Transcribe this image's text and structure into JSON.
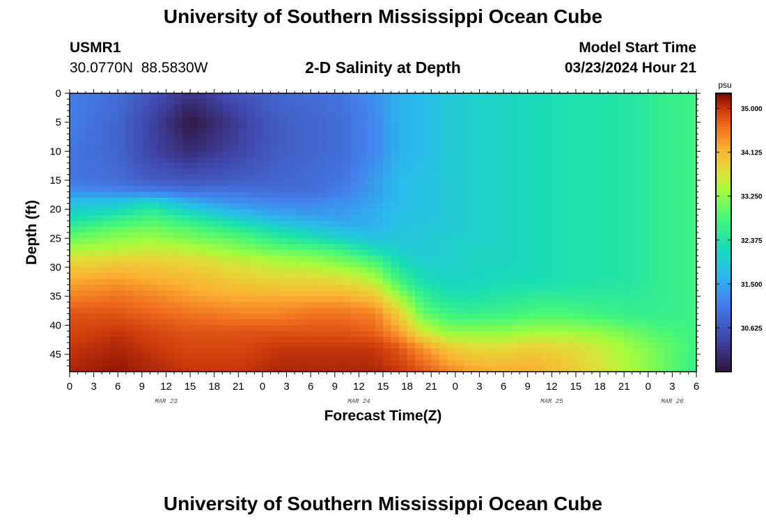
{
  "page": {
    "title": "University of Southern Mississippi Ocean Cube",
    "footer_title": "University of Southern Mississippi Ocean Cube",
    "station_id": "USMR1",
    "station_coords": "30.0770N  88.5830W",
    "plot_title": "2-D Salinity at Depth",
    "model_start_label": "Model Start Time",
    "model_start_value": "03/23/2024 Hour 21"
  },
  "chart_data": {
    "type": "heatmap",
    "title": "2-D Salinity at Depth",
    "xlabel": "Forecast Time(Z)",
    "ylabel": "Depth (ft)",
    "x_unit": "hours since 2024-03-23 00Z",
    "xlim": [
      0,
      78
    ],
    "ylim": [
      0,
      48
    ],
    "y_reversed": true,
    "x_ticks": [
      0,
      3,
      6,
      9,
      12,
      15,
      18,
      21,
      24,
      27,
      30,
      33,
      36,
      39,
      42,
      45,
      48,
      51,
      54,
      57,
      60,
      63,
      66,
      69,
      72,
      75,
      78
    ],
    "x_tick_labels": [
      "0",
      "3",
      "6",
      "9",
      "12",
      "15",
      "18",
      "21",
      "0",
      "3",
      "6",
      "9",
      "12",
      "15",
      "18",
      "21",
      "0",
      "3",
      "6",
      "9",
      "12",
      "15",
      "18",
      "21",
      "0",
      "3",
      "6"
    ],
    "y_ticks": [
      0,
      5,
      10,
      15,
      20,
      25,
      30,
      35,
      40,
      45
    ],
    "y_tick_labels": [
      "0",
      "5",
      "10",
      "15",
      "20",
      "25",
      "30",
      "35",
      "40",
      "45"
    ],
    "date_labels": [
      {
        "x": 12,
        "label": "MAR 23"
      },
      {
        "x": 36,
        "label": "MAR 24"
      },
      {
        "x": 60,
        "label": "MAR 25"
      },
      {
        "x": 75,
        "label": "MAR 26"
      }
    ],
    "colorbar": {
      "unit": "psu",
      "min": 29.75,
      "max": 35.3,
      "ticks": [
        35.0,
        34.125,
        33.25,
        32.375,
        31.5,
        30.625
      ],
      "tick_labels": [
        "35.000",
        "34.125",
        "33.250",
        "32.375",
        "31.500",
        "30.625"
      ]
    },
    "grid_times": [
      0,
      6,
      10,
      15,
      21,
      26,
      30,
      34,
      38,
      41,
      44,
      47,
      50,
      54,
      58,
      62,
      66,
      70,
      74,
      78
    ],
    "grid_depths": [
      0,
      5,
      10,
      15,
      17,
      19,
      21,
      23,
      25,
      27,
      29,
      32,
      35,
      38,
      41,
      44,
      48
    ],
    "salinity": [
      [
        31.1,
        30.9,
        30.6,
        30.2,
        30.6,
        30.8,
        30.9,
        31.0,
        31.3,
        31.6,
        31.7,
        31.9,
        32.0,
        32.1,
        32.2,
        32.3,
        32.35,
        32.4,
        32.6,
        32.7
      ],
      [
        31.1,
        30.8,
        30.4,
        29.8,
        30.3,
        30.7,
        30.8,
        30.9,
        31.2,
        31.6,
        31.7,
        31.9,
        32.0,
        32.1,
        32.2,
        32.3,
        32.35,
        32.4,
        32.6,
        32.7
      ],
      [
        31.0,
        30.8,
        30.4,
        30.1,
        30.4,
        30.7,
        30.8,
        30.9,
        31.2,
        31.6,
        31.7,
        31.9,
        32.0,
        32.1,
        32.2,
        32.3,
        32.35,
        32.4,
        32.6,
        32.7
      ],
      [
        31.0,
        30.9,
        30.7,
        30.6,
        30.7,
        30.8,
        30.9,
        31.0,
        31.4,
        31.7,
        31.8,
        31.9,
        32.0,
        32.1,
        32.2,
        32.3,
        32.35,
        32.4,
        32.6,
        32.7
      ],
      [
        31.3,
        31.2,
        31.1,
        31.0,
        31.0,
        30.9,
        30.9,
        31.1,
        31.4,
        31.7,
        31.8,
        31.9,
        32.0,
        32.1,
        32.2,
        32.3,
        32.35,
        32.4,
        32.6,
        32.7
      ],
      [
        31.8,
        31.9,
        32.2,
        31.6,
        31.3,
        31.2,
        31.2,
        31.3,
        31.5,
        31.7,
        31.8,
        31.9,
        32.0,
        32.1,
        32.2,
        32.3,
        32.35,
        32.4,
        32.6,
        32.7
      ],
      [
        32.1,
        32.4,
        32.7,
        32.3,
        31.8,
        31.5,
        31.4,
        31.4,
        31.6,
        31.8,
        31.8,
        31.9,
        32.0,
        32.1,
        32.2,
        32.3,
        32.35,
        32.4,
        32.6,
        32.7
      ],
      [
        32.6,
        32.9,
        33.0,
        32.8,
        32.4,
        32.0,
        31.8,
        31.6,
        31.6,
        31.8,
        31.9,
        31.9,
        32.0,
        32.1,
        32.2,
        32.3,
        32.35,
        32.4,
        32.6,
        32.7
      ],
      [
        33.0,
        33.2,
        33.3,
        33.1,
        32.9,
        32.5,
        32.3,
        32.0,
        31.8,
        31.9,
        31.9,
        32.0,
        32.0,
        32.1,
        32.2,
        32.3,
        32.35,
        32.4,
        32.6,
        32.7
      ],
      [
        33.4,
        33.5,
        33.6,
        33.5,
        33.2,
        33.0,
        32.9,
        32.7,
        32.2,
        32.0,
        31.9,
        32.0,
        32.1,
        32.1,
        32.2,
        32.3,
        32.35,
        32.4,
        32.6,
        32.7
      ],
      [
        33.8,
        33.9,
        33.9,
        33.8,
        33.6,
        33.4,
        33.3,
        33.1,
        32.8,
        32.2,
        32.0,
        32.0,
        32.1,
        32.1,
        32.2,
        32.3,
        32.35,
        32.4,
        32.6,
        32.7
      ],
      [
        34.2,
        34.3,
        34.2,
        34.1,
        33.9,
        33.8,
        33.8,
        33.7,
        33.4,
        32.7,
        32.2,
        32.1,
        32.1,
        32.2,
        32.2,
        32.3,
        32.35,
        32.4,
        32.6,
        32.7
      ],
      [
        34.5,
        34.6,
        34.5,
        34.3,
        34.2,
        34.2,
        34.2,
        34.2,
        34.0,
        33.3,
        32.6,
        32.3,
        32.3,
        32.4,
        32.5,
        32.5,
        32.5,
        32.5,
        32.6,
        32.7
      ],
      [
        34.8,
        34.8,
        34.7,
        34.6,
        34.5,
        34.5,
        34.6,
        34.6,
        34.5,
        33.9,
        33.0,
        32.7,
        32.6,
        32.7,
        32.8,
        32.8,
        32.7,
        32.6,
        32.6,
        32.7
      ],
      [
        34.9,
        35.0,
        34.9,
        34.8,
        34.8,
        34.8,
        34.8,
        34.8,
        34.7,
        34.3,
        33.6,
        33.2,
        33.2,
        33.2,
        33.3,
        33.3,
        33.2,
        33.0,
        32.8,
        32.7
      ],
      [
        35.0,
        35.1,
        35.0,
        34.9,
        34.9,
        35.0,
        35.0,
        35.0,
        35.0,
        34.8,
        34.4,
        34.0,
        33.8,
        33.8,
        33.9,
        33.8,
        33.6,
        33.3,
        33.0,
        32.7
      ],
      [
        35.1,
        35.2,
        35.1,
        35.0,
        35.0,
        35.1,
        35.1,
        35.1,
        35.1,
        35.0,
        34.8,
        34.5,
        34.3,
        34.2,
        34.2,
        34.0,
        33.7,
        33.4,
        33.0,
        32.6
      ]
    ]
  }
}
